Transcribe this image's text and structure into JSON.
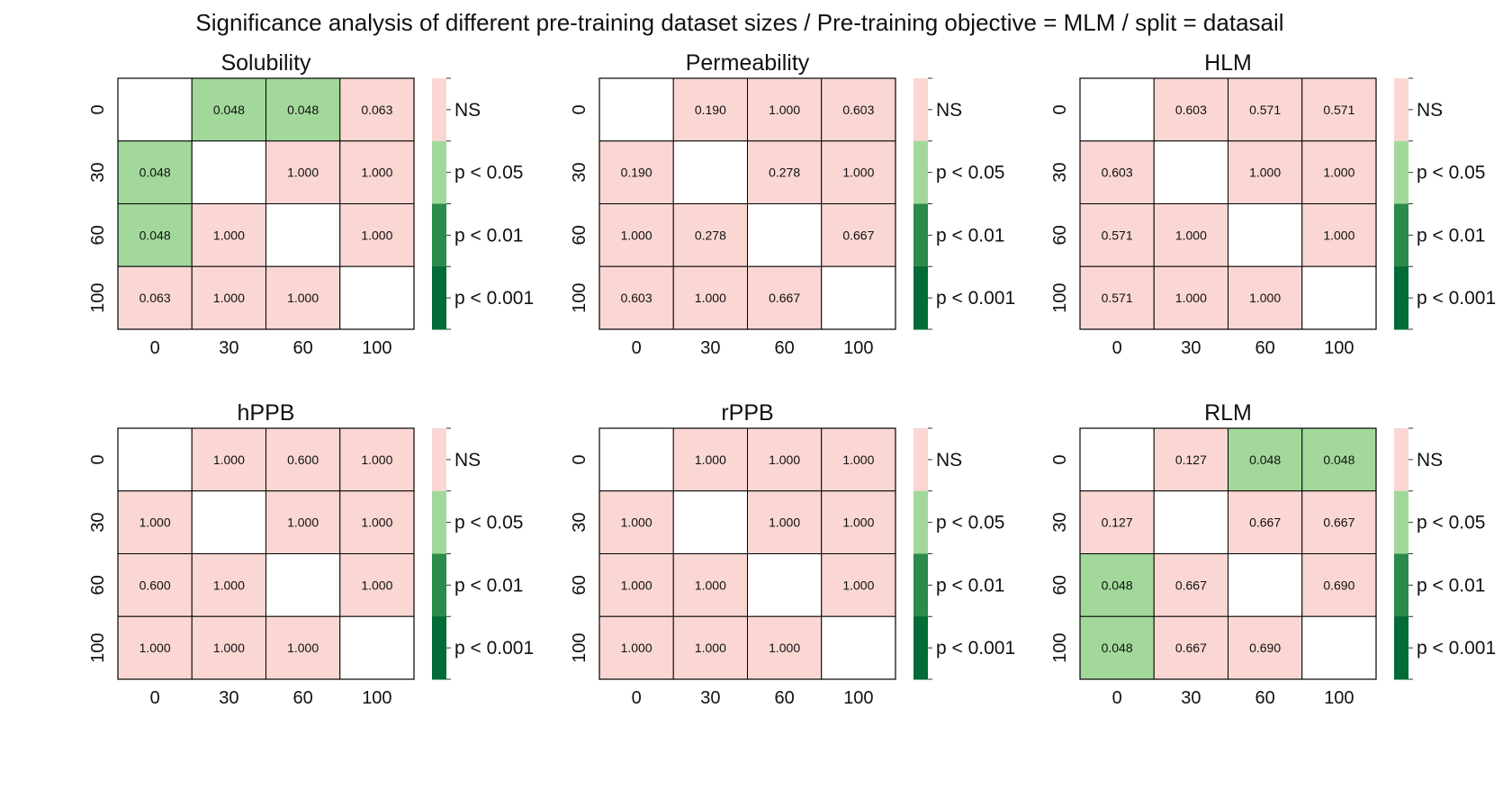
{
  "title": "Significance analysis of different pre-training dataset sizes / Pre-training objective = MLM / split = datasail",
  "colors": {
    "ns": "#fad7d3",
    "p05": "#a2d99b",
    "p01": "#2a8b4a",
    "p001": "#026b36",
    "diagonal": "#ffffff",
    "grid": "#000000"
  },
  "chart_data": [
    {
      "type": "heatmap",
      "title": "Solubility",
      "x_ticks": [
        "0",
        "30",
        "60",
        "100"
      ],
      "y_ticks": [
        "0",
        "30",
        "60",
        "100"
      ],
      "values": [
        [
          null,
          "0.048",
          "0.048",
          "0.063"
        ],
        [
          "0.048",
          null,
          "1.000",
          "1.000"
        ],
        [
          "0.048",
          "1.000",
          null,
          "1.000"
        ],
        [
          "0.063",
          "1.000",
          "1.000",
          null
        ]
      ],
      "colorbar": [
        "NS",
        "p < 0.05",
        "p < 0.01",
        "p < 0.001"
      ]
    },
    {
      "type": "heatmap",
      "title": "Permeability",
      "x_ticks": [
        "0",
        "30",
        "60",
        "100"
      ],
      "y_ticks": [
        "0",
        "30",
        "60",
        "100"
      ],
      "values": [
        [
          null,
          "0.190",
          "1.000",
          "0.603"
        ],
        [
          "0.190",
          null,
          "0.278",
          "1.000"
        ],
        [
          "1.000",
          "0.278",
          null,
          "0.667"
        ],
        [
          "0.603",
          "1.000",
          "0.667",
          null
        ]
      ],
      "colorbar": [
        "NS",
        "p < 0.05",
        "p < 0.01",
        "p < 0.001"
      ]
    },
    {
      "type": "heatmap",
      "title": "HLM",
      "x_ticks": [
        "0",
        "30",
        "60",
        "100"
      ],
      "y_ticks": [
        "0",
        "30",
        "60",
        "100"
      ],
      "values": [
        [
          null,
          "0.603",
          "0.571",
          "0.571"
        ],
        [
          "0.603",
          null,
          "1.000",
          "1.000"
        ],
        [
          "0.571",
          "1.000",
          null,
          "1.000"
        ],
        [
          "0.571",
          "1.000",
          "1.000",
          null
        ]
      ],
      "colorbar": [
        "NS",
        "p < 0.05",
        "p < 0.01",
        "p < 0.001"
      ]
    },
    {
      "type": "heatmap",
      "title": "hPPB",
      "x_ticks": [
        "0",
        "30",
        "60",
        "100"
      ],
      "y_ticks": [
        "0",
        "30",
        "60",
        "100"
      ],
      "values": [
        [
          null,
          "1.000",
          "0.600",
          "1.000"
        ],
        [
          "1.000",
          null,
          "1.000",
          "1.000"
        ],
        [
          "0.600",
          "1.000",
          null,
          "1.000"
        ],
        [
          "1.000",
          "1.000",
          "1.000",
          null
        ]
      ],
      "colorbar": [
        "NS",
        "p < 0.05",
        "p < 0.01",
        "p < 0.001"
      ]
    },
    {
      "type": "heatmap",
      "title": "rPPB",
      "x_ticks": [
        "0",
        "30",
        "60",
        "100"
      ],
      "y_ticks": [
        "0",
        "30",
        "60",
        "100"
      ],
      "values": [
        [
          null,
          "1.000",
          "1.000",
          "1.000"
        ],
        [
          "1.000",
          null,
          "1.000",
          "1.000"
        ],
        [
          "1.000",
          "1.000",
          null,
          "1.000"
        ],
        [
          "1.000",
          "1.000",
          "1.000",
          null
        ]
      ],
      "colorbar": [
        "NS",
        "p < 0.05",
        "p < 0.01",
        "p < 0.001"
      ]
    },
    {
      "type": "heatmap",
      "title": "RLM",
      "x_ticks": [
        "0",
        "30",
        "60",
        "100"
      ],
      "y_ticks": [
        "0",
        "30",
        "60",
        "100"
      ],
      "values": [
        [
          null,
          "0.127",
          "0.048",
          "0.048"
        ],
        [
          "0.127",
          null,
          "0.667",
          "0.667"
        ],
        [
          "0.048",
          "0.667",
          null,
          "0.690"
        ],
        [
          "0.048",
          "0.667",
          "0.690",
          null
        ]
      ],
      "colorbar": [
        "NS",
        "p < 0.05",
        "p < 0.01",
        "p < 0.001"
      ]
    }
  ]
}
